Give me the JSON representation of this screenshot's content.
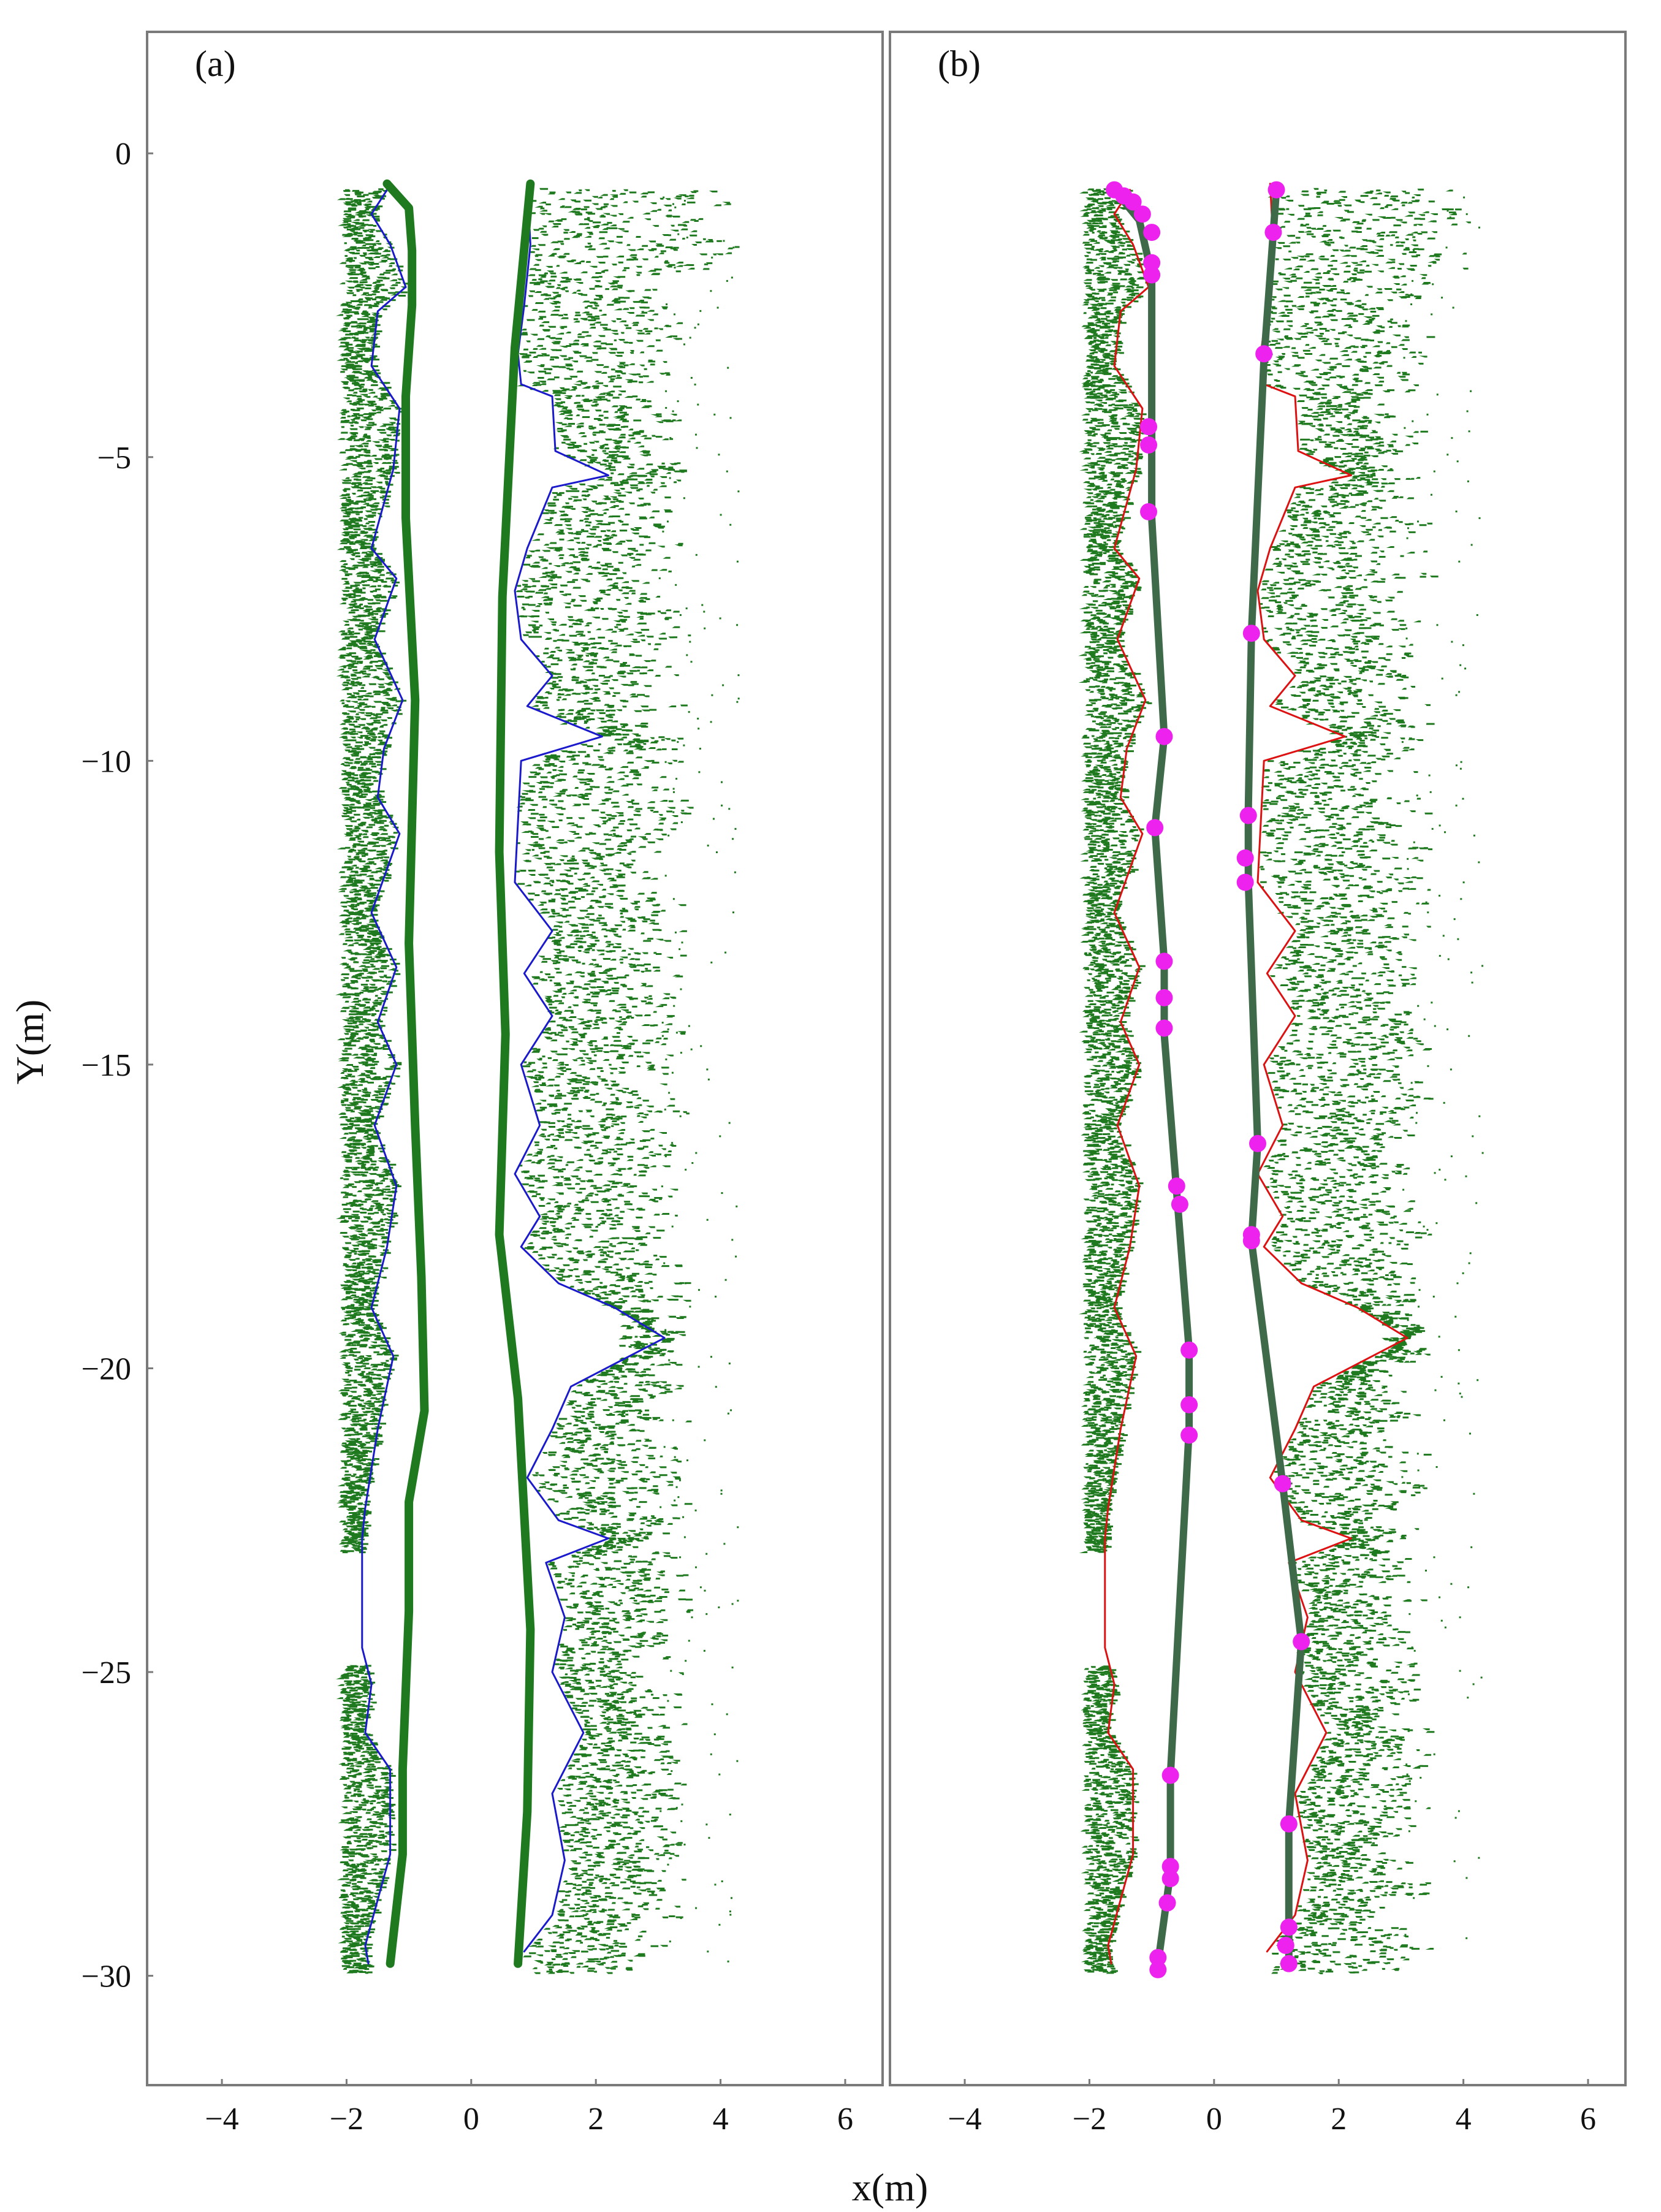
{
  "chart_data": [
    {
      "type": "scatter",
      "panel_label": "(a)",
      "xlim": [
        -5.2,
        6.6
      ],
      "ylim": [
        -31.8,
        2.0
      ],
      "xticks": [
        -4,
        -2,
        0,
        2,
        4,
        6
      ],
      "yticks": [
        0,
        -5,
        -10,
        -15,
        -20,
        -25,
        -30
      ],
      "grid": false,
      "colors": {
        "vegetation": "#1f7a1f",
        "boundary": "#1a1acc",
        "fitted": "#1f7a1f"
      },
      "series": [
        {
          "role": "left-boundary",
          "points": [
            [
              -1.35,
              -0.6
            ],
            [
              -1.6,
              -1.0
            ],
            [
              -1.3,
              -1.5
            ],
            [
              -1.05,
              -2.2
            ],
            [
              -1.5,
              -2.6
            ],
            [
              -1.6,
              -3.5
            ],
            [
              -1.15,
              -4.2
            ],
            [
              -1.25,
              -5.2
            ],
            [
              -1.6,
              -6.5
            ],
            [
              -1.2,
              -7.0
            ],
            [
              -1.55,
              -8.0
            ],
            [
              -1.1,
              -9.0
            ],
            [
              -1.4,
              -9.8
            ],
            [
              -1.5,
              -10.6
            ],
            [
              -1.15,
              -11.2
            ],
            [
              -1.6,
              -12.5
            ],
            [
              -1.2,
              -13.4
            ],
            [
              -1.5,
              -14.3
            ],
            [
              -1.2,
              -15.0
            ],
            [
              -1.55,
              -16.0
            ],
            [
              -1.2,
              -17.0
            ],
            [
              -1.35,
              -18.0
            ],
            [
              -1.6,
              -19.0
            ],
            [
              -1.25,
              -19.8
            ],
            [
              -1.5,
              -21.0
            ],
            [
              -1.7,
              -22.3
            ],
            [
              -1.75,
              -22.8
            ],
            [
              -1.75,
              -24.6
            ],
            [
              -1.6,
              -25.2
            ],
            [
              -1.7,
              -26.0
            ],
            [
              -1.3,
              -26.6
            ],
            [
              -1.3,
              -28.0
            ],
            [
              -1.7,
              -29.5
            ],
            [
              -1.65,
              -29.8
            ]
          ]
        },
        {
          "role": "right-boundary",
          "points": [
            [
              0.9,
              -0.5
            ],
            [
              0.95,
              -1.5
            ],
            [
              0.85,
              -2.5
            ],
            [
              0.75,
              -3.3
            ],
            [
              0.8,
              -3.8
            ],
            [
              1.3,
              -4.0
            ],
            [
              1.35,
              -4.9
            ],
            [
              2.2,
              -5.3
            ],
            [
              1.3,
              -5.5
            ],
            [
              0.9,
              -6.5
            ],
            [
              0.7,
              -7.2
            ],
            [
              0.8,
              -8.0
            ],
            [
              1.3,
              -8.6
            ],
            [
              0.9,
              -9.1
            ],
            [
              2.1,
              -9.6
            ],
            [
              0.8,
              -10.0
            ],
            [
              0.75,
              -11.0
            ],
            [
              0.7,
              -12.0
            ],
            [
              1.3,
              -12.8
            ],
            [
              0.85,
              -13.5
            ],
            [
              1.3,
              -14.2
            ],
            [
              0.8,
              -15.0
            ],
            [
              1.1,
              -16.0
            ],
            [
              0.7,
              -16.8
            ],
            [
              1.1,
              -17.5
            ],
            [
              0.8,
              -18.0
            ],
            [
              1.4,
              -18.6
            ],
            [
              2.3,
              -19.0
            ],
            [
              3.1,
              -19.5
            ],
            [
              1.6,
              -20.3
            ],
            [
              1.3,
              -21.0
            ],
            [
              0.9,
              -21.8
            ],
            [
              1.4,
              -22.5
            ],
            [
              2.2,
              -22.8
            ],
            [
              1.2,
              -23.2
            ],
            [
              1.5,
              -24.1
            ],
            [
              1.3,
              -25.0
            ],
            [
              1.8,
              -26.0
            ],
            [
              1.3,
              -27.0
            ],
            [
              1.5,
              -28.1
            ],
            [
              1.3,
              -29.0
            ],
            [
              0.85,
              -29.6
            ]
          ]
        },
        {
          "role": "left-fitted-edge",
          "points": [
            [
              -1.35,
              -0.5
            ],
            [
              -1.0,
              -0.9
            ],
            [
              -0.95,
              -1.6
            ],
            [
              -0.95,
              -2.5
            ],
            [
              -1.05,
              -4.0
            ],
            [
              -1.05,
              -6.0
            ],
            [
              -0.9,
              -9.0
            ],
            [
              -0.95,
              -11.0
            ],
            [
              -1.0,
              -13.0
            ],
            [
              -0.9,
              -16.0
            ],
            [
              -0.8,
              -18.5
            ],
            [
              -0.75,
              -20.7
            ],
            [
              -1.0,
              -22.2
            ],
            [
              -1.0,
              -24.0
            ],
            [
              -1.1,
              -26.6
            ],
            [
              -1.1,
              -28.0
            ],
            [
              -1.3,
              -29.8
            ]
          ]
        },
        {
          "role": "right-fitted-edge",
          "points": [
            [
              0.95,
              -0.5
            ],
            [
              0.7,
              -3.2
            ],
            [
              0.5,
              -7.3
            ],
            [
              0.45,
              -11.5
            ],
            [
              0.55,
              -14.5
            ],
            [
              0.45,
              -17.8
            ],
            [
              0.75,
              -20.5
            ],
            [
              0.95,
              -24.3
            ],
            [
              0.9,
              -27.3
            ],
            [
              0.75,
              -29.8
            ]
          ]
        }
      ]
    },
    {
      "type": "scatter",
      "panel_label": "(b)",
      "xlabel": "x(m)",
      "xlim": [
        -5.2,
        6.6
      ],
      "ylim": [
        -31.8,
        2.0
      ],
      "xticks": [
        -4,
        -2,
        0,
        2,
        4,
        6
      ],
      "yticks": [
        0,
        -5,
        -10,
        -15,
        -20,
        -25,
        -30
      ],
      "grid": false,
      "colors": {
        "vegetation": "#1f7a1f",
        "boundary": "#dd1111",
        "fitted": "#3f6a4a",
        "keypoints": "#ee22ee"
      },
      "series": [
        {
          "role": "left-boundary",
          "points": [
            [
              -1.35,
              -0.6
            ],
            [
              -1.6,
              -1.0
            ],
            [
              -1.3,
              -1.5
            ],
            [
              -1.05,
              -2.2
            ],
            [
              -1.5,
              -2.6
            ],
            [
              -1.6,
              -3.5
            ],
            [
              -1.15,
              -4.2
            ],
            [
              -1.25,
              -5.2
            ],
            [
              -1.6,
              -6.5
            ],
            [
              -1.2,
              -7.0
            ],
            [
              -1.55,
              -8.0
            ],
            [
              -1.1,
              -9.0
            ],
            [
              -1.4,
              -9.8
            ],
            [
              -1.5,
              -10.6
            ],
            [
              -1.15,
              -11.2
            ],
            [
              -1.6,
              -12.5
            ],
            [
              -1.2,
              -13.4
            ],
            [
              -1.5,
              -14.3
            ],
            [
              -1.2,
              -15.0
            ],
            [
              -1.55,
              -16.0
            ],
            [
              -1.2,
              -17.0
            ],
            [
              -1.35,
              -18.0
            ],
            [
              -1.6,
              -19.0
            ],
            [
              -1.25,
              -19.8
            ],
            [
              -1.5,
              -21.0
            ],
            [
              -1.7,
              -22.3
            ],
            [
              -1.75,
              -22.8
            ],
            [
              -1.75,
              -24.6
            ],
            [
              -1.6,
              -25.2
            ],
            [
              -1.7,
              -26.0
            ],
            [
              -1.3,
              -26.6
            ],
            [
              -1.3,
              -28.0
            ],
            [
              -1.7,
              -29.5
            ],
            [
              -1.65,
              -29.8
            ]
          ]
        },
        {
          "role": "right-boundary",
          "points": [
            [
              0.9,
              -0.5
            ],
            [
              0.95,
              -1.5
            ],
            [
              0.85,
              -2.5
            ],
            [
              0.75,
              -3.3
            ],
            [
              0.8,
              -3.8
            ],
            [
              1.3,
              -4.0
            ],
            [
              1.35,
              -4.9
            ],
            [
              2.2,
              -5.3
            ],
            [
              1.3,
              -5.5
            ],
            [
              0.9,
              -6.5
            ],
            [
              0.7,
              -7.2
            ],
            [
              0.8,
              -8.0
            ],
            [
              1.3,
              -8.6
            ],
            [
              0.9,
              -9.1
            ],
            [
              2.1,
              -9.6
            ],
            [
              0.8,
              -10.0
            ],
            [
              0.75,
              -11.0
            ],
            [
              0.7,
              -12.0
            ],
            [
              1.3,
              -12.8
            ],
            [
              0.85,
              -13.5
            ],
            [
              1.3,
              -14.2
            ],
            [
              0.8,
              -15.0
            ],
            [
              1.1,
              -16.0
            ],
            [
              0.7,
              -16.8
            ],
            [
              1.1,
              -17.5
            ],
            [
              0.8,
              -18.0
            ],
            [
              1.4,
              -18.6
            ],
            [
              2.3,
              -19.0
            ],
            [
              3.1,
              -19.5
            ],
            [
              1.6,
              -20.3
            ],
            [
              1.3,
              -21.0
            ],
            [
              0.9,
              -21.8
            ],
            [
              1.4,
              -22.5
            ],
            [
              2.2,
              -22.8
            ],
            [
              1.2,
              -23.2
            ],
            [
              1.5,
              -24.1
            ],
            [
              1.3,
              -25.0
            ],
            [
              1.8,
              -26.0
            ],
            [
              1.3,
              -27.0
            ],
            [
              1.5,
              -28.1
            ],
            [
              1.3,
              -29.0
            ],
            [
              0.85,
              -29.6
            ]
          ]
        },
        {
          "role": "left-fitted-edge",
          "points": [
            [
              -1.6,
              -0.6
            ],
            [
              -1.2,
              -1.1
            ],
            [
              -1.0,
              -2.0
            ],
            [
              -1.0,
              -4.6
            ],
            [
              -1.0,
              -6.0
            ],
            [
              -0.8,
              -9.6
            ],
            [
              -0.95,
              -11.1
            ],
            [
              -0.8,
              -13.3
            ],
            [
              -0.8,
              -14.5
            ],
            [
              -0.6,
              -17.1
            ],
            [
              -0.4,
              -19.7
            ],
            [
              -0.4,
              -21.0
            ],
            [
              -0.7,
              -26.7
            ],
            [
              -0.7,
              -28.3
            ],
            [
              -0.9,
              -29.8
            ]
          ]
        },
        {
          "role": "right-fitted-edge",
          "points": [
            [
              1.0,
              -0.6
            ],
            [
              0.8,
              -3.4
            ],
            [
              0.6,
              -7.9
            ],
            [
              0.55,
              -10.8
            ],
            [
              0.55,
              -12.0
            ],
            [
              0.7,
              -16.3
            ],
            [
              0.6,
              -17.9
            ],
            [
              1.1,
              -21.9
            ],
            [
              1.4,
              -24.5
            ],
            [
              1.2,
              -27.5
            ],
            [
              1.2,
              -29.8
            ]
          ]
        },
        {
          "role": "key-points",
          "points": [
            [
              -1.6,
              -0.6
            ],
            [
              -1.45,
              -0.7
            ],
            [
              -1.3,
              -0.8
            ],
            [
              -1.15,
              -1.0
            ],
            [
              -1.0,
              -1.3
            ],
            [
              -1.0,
              -1.8
            ],
            [
              -1.0,
              -2.0
            ],
            [
              -1.05,
              -4.5
            ],
            [
              -1.05,
              -4.8
            ],
            [
              -1.05,
              -5.9
            ],
            [
              -0.8,
              -9.6
            ],
            [
              -0.95,
              -11.1
            ],
            [
              -0.8,
              -13.3
            ],
            [
              -0.8,
              -13.9
            ],
            [
              -0.8,
              -14.4
            ],
            [
              -0.6,
              -17.0
            ],
            [
              -0.55,
              -17.3
            ],
            [
              -0.4,
              -19.7
            ],
            [
              -0.4,
              -20.6
            ],
            [
              -0.4,
              -21.1
            ],
            [
              -0.7,
              -26.7
            ],
            [
              -0.7,
              -28.2
            ],
            [
              -0.7,
              -28.4
            ],
            [
              -0.75,
              -28.8
            ],
            [
              -0.9,
              -29.7
            ],
            [
              -0.9,
              -29.9
            ],
            [
              1.0,
              -0.6
            ],
            [
              0.95,
              -1.3
            ],
            [
              0.8,
              -3.3
            ],
            [
              0.6,
              -7.9
            ],
            [
              0.55,
              -10.9
            ],
            [
              0.5,
              -11.6
            ],
            [
              0.5,
              -12.0
            ],
            [
              0.7,
              -16.3
            ],
            [
              0.6,
              -17.8
            ],
            [
              0.6,
              -17.9
            ],
            [
              1.1,
              -21.9
            ],
            [
              1.4,
              -24.5
            ],
            [
              1.2,
              -27.5
            ],
            [
              1.2,
              -29.2
            ],
            [
              1.15,
              -29.5
            ],
            [
              1.2,
              -29.8
            ]
          ]
        }
      ]
    }
  ],
  "axes": {
    "ylabel": "Y(m)"
  }
}
